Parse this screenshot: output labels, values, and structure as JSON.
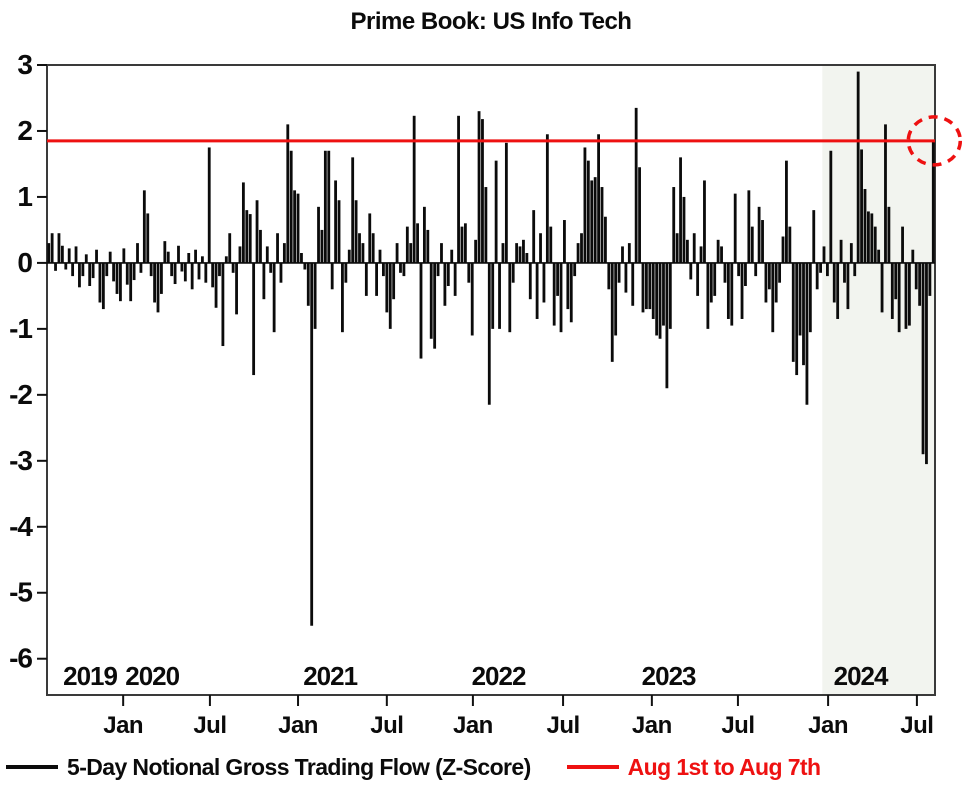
{
  "title": "Prime Book: US Info Tech",
  "legend": {
    "series1": "5-Day Notional Gross Trading Flow (Z-Score)",
    "series2": "Aug 1st to Aug 7th"
  },
  "colors": {
    "bar": "#0b0b0b",
    "reference_red": "#ee1111",
    "highlight_band": "#f2f4ef",
    "plot_border": "#3a3a3a"
  },
  "chart_data": {
    "type": "bar",
    "title": "Prime Book: US Info Tech",
    "series_name": "5-Day Notional Gross Trading Flow (Z-Score)",
    "frequency": "weekly",
    "x_start": "2019-08",
    "x_end": "2024-08-07",
    "ylim": [
      -6.55,
      3
    ],
    "y_ticks": [
      3,
      2,
      1,
      0,
      -1,
      -2,
      -3,
      -4,
      -5,
      -6
    ],
    "x_month_ticks": [
      {
        "label": "Jan",
        "index": 22.3
      },
      {
        "label": "Jul",
        "index": 47.7
      },
      {
        "label": "Jan",
        "index": 73.5
      },
      {
        "label": "Jul",
        "index": 99.5
      },
      {
        "label": "Jan",
        "index": 124.7
      },
      {
        "label": "Jul",
        "index": 151.1
      },
      {
        "label": "Jan",
        "index": 177.1
      },
      {
        "label": "Jul",
        "index": 202.3
      },
      {
        "label": "Jan",
        "index": 228.7
      },
      {
        "label": "Jul",
        "index": 254.7
      }
    ],
    "x_year_labels": [
      {
        "label": "2019",
        "index": 12.6
      },
      {
        "label": "2020",
        "index": 30.8
      },
      {
        "label": "2021",
        "index": 82.9
      },
      {
        "label": "2022",
        "index": 132.2
      },
      {
        "label": "2023",
        "index": 182.0
      },
      {
        "label": "2024",
        "index": 238.2
      }
    ],
    "reference_line": {
      "value": 1.85,
      "label": "Aug 1st to Aug 7th"
    },
    "highlight_band": {
      "start_index": 227,
      "end_index": 260
    },
    "annotation_circle": {
      "at_index": 259,
      "value": 1.85
    },
    "values": [
      0.3,
      0.45,
      -0.12,
      0.45,
      0.26,
      -0.1,
      0.22,
      -0.2,
      0.25,
      -0.37,
      -0.2,
      0.13,
      -0.35,
      -0.23,
      0.2,
      -0.6,
      -0.7,
      -0.2,
      0.17,
      -0.28,
      -0.47,
      -0.58,
      0.22,
      -0.33,
      -0.58,
      -0.26,
      0.3,
      -0.15,
      1.1,
      0.75,
      -0.2,
      -0.6,
      -0.75,
      -0.47,
      0.33,
      0.17,
      -0.2,
      -0.32,
      0.26,
      -0.13,
      -0.28,
      0.15,
      -0.4,
      0.2,
      -0.25,
      0.1,
      -0.3,
      1.75,
      -0.37,
      -0.68,
      -0.2,
      -1.26,
      0.1,
      0.45,
      -0.15,
      -0.78,
      0.25,
      1.22,
      0.8,
      0.74,
      -1.7,
      0.95,
      0.5,
      -0.55,
      0.25,
      -0.15,
      -1.05,
      0.45,
      -0.3,
      0.3,
      2.1,
      1.7,
      1.1,
      1.05,
      0.15,
      -0.1,
      -0.65,
      -5.5,
      -1.0,
      0.85,
      0.5,
      1.7,
      1.7,
      -0.4,
      1.25,
      0.95,
      -1.05,
      -0.3,
      0.2,
      1.6,
      0.95,
      0.45,
      0.3,
      -0.5,
      0.75,
      0.45,
      -0.5,
      0.2,
      -0.2,
      -0.75,
      -1.0,
      -0.55,
      0.3,
      -0.15,
      -0.2,
      0.55,
      0.3,
      2.23,
      0.6,
      -1.45,
      0.85,
      0.5,
      -1.15,
      -1.3,
      -0.2,
      0.3,
      -0.65,
      -0.35,
      0.2,
      -0.5,
      2.23,
      0.55,
      0.6,
      -0.3,
      -1.1,
      0.35,
      2.3,
      2.18,
      1.15,
      -2.15,
      -1.0,
      1.55,
      -1.0,
      0.3,
      1.82,
      -1.05,
      -0.3,
      0.3,
      0.25,
      0.35,
      0.15,
      -0.55,
      0.8,
      -0.85,
      0.45,
      -0.6,
      1.95,
      0.55,
      -0.95,
      -0.5,
      -1.05,
      0.65,
      -0.7,
      -0.9,
      -0.2,
      0.3,
      0.45,
      1.75,
      1.55,
      1.25,
      1.3,
      1.95,
      1.15,
      0.7,
      -0.4,
      -1.5,
      -1.1,
      -0.3,
      0.25,
      -0.45,
      0.3,
      -0.65,
      2.35,
      1.45,
      -0.75,
      -0.7,
      -0.7,
      -0.85,
      -1.1,
      -1.15,
      -0.95,
      -1.9,
      -1.0,
      1.15,
      0.45,
      1.6,
      1.0,
      0.35,
      -0.25,
      0.45,
      -0.5,
      0.25,
      1.25,
      -1.0,
      -0.6,
      -0.5,
      0.35,
      0.25,
      -0.3,
      -0.85,
      -0.95,
      1.05,
      -0.2,
      -0.85,
      -0.35,
      1.1,
      0.55,
      -0.2,
      0.85,
      0.65,
      -0.6,
      -0.4,
      -1.05,
      -0.6,
      -0.3,
      0.4,
      1.55,
      0.55,
      -1.5,
      -1.7,
      -1.1,
      -1.55,
      -2.15,
      -1.05,
      0.8,
      -0.4,
      -0.15,
      0.25,
      -0.2,
      1.7,
      -0.6,
      -0.85,
      0.35,
      -0.3,
      -0.7,
      0.3,
      -0.2,
      2.9,
      1.72,
      1.12,
      0.78,
      0.75,
      0.55,
      0.2,
      -0.75,
      2.1,
      0.85,
      -0.85,
      -0.55,
      -1.05,
      0.55,
      -1.0,
      -0.95,
      0.2,
      -0.4,
      -0.65,
      -2.9,
      -3.05,
      -0.5,
      1.85
    ]
  }
}
